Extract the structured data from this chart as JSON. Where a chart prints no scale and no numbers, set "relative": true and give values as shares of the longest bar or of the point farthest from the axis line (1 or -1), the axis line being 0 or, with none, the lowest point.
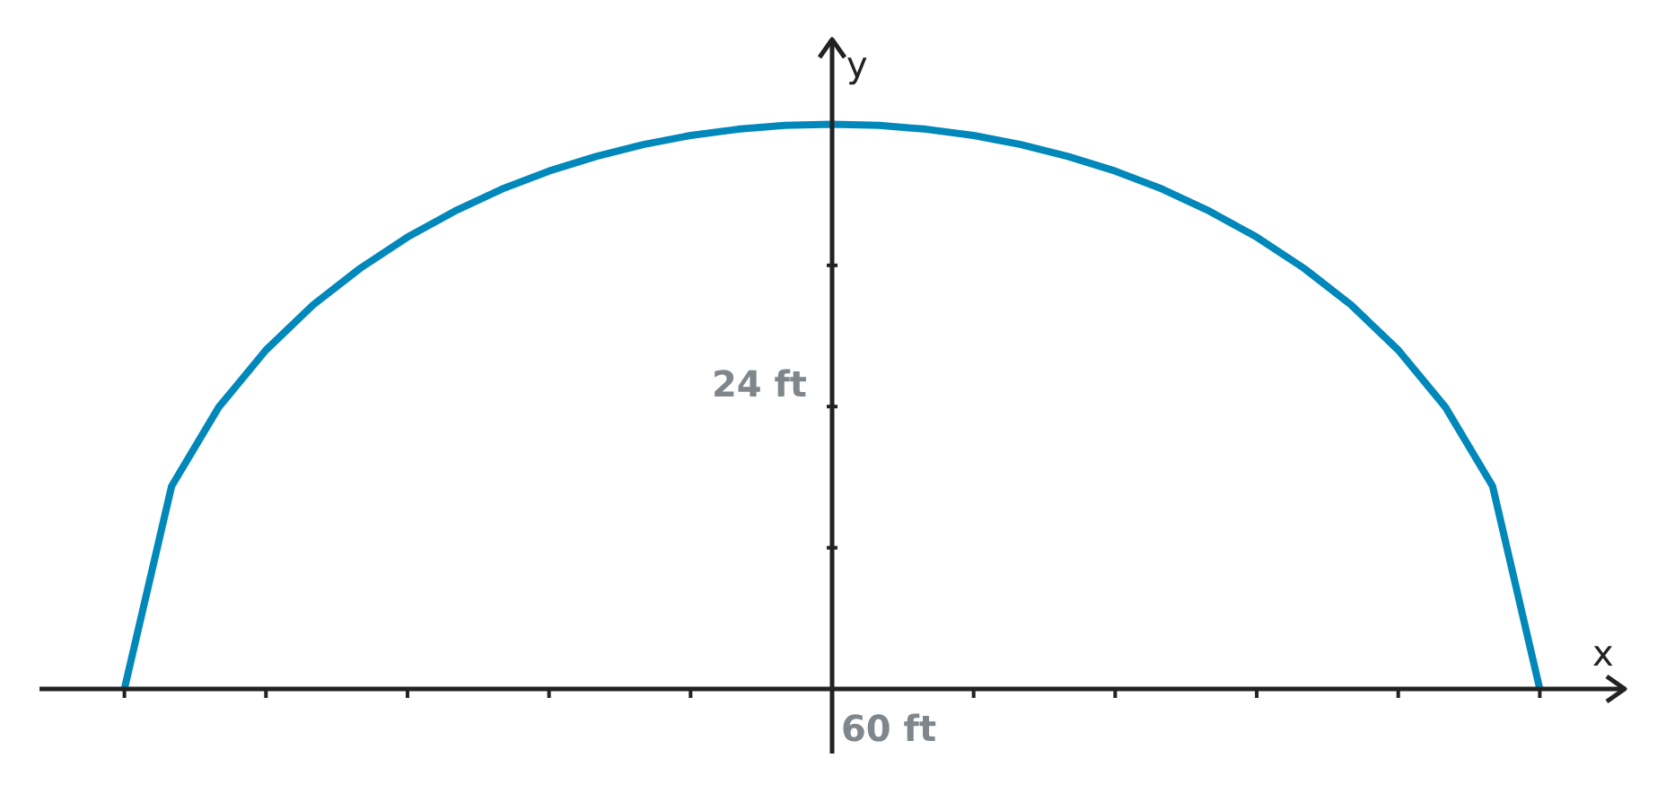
{
  "chart_data": {
    "type": "line",
    "relative": true,
    "xlabel": "x",
    "ylabel": "y",
    "annotations": [
      "24 ft",
      "60 ft"
    ],
    "categories": [
      null,
      null,
      null,
      null,
      null,
      null,
      null,
      null,
      null,
      null,
      null,
      null,
      null,
      null,
      null,
      null,
      null,
      null,
      null,
      null,
      null,
      null,
      null,
      null,
      null,
      null,
      null,
      null,
      null,
      null,
      null
    ],
    "values": [
      0,
      0.359,
      0.499,
      0.6,
      0.68,
      0.745,
      0.8,
      0.846,
      0.885,
      0.917,
      0.943,
      0.964,
      0.98,
      0.991,
      0.998,
      1,
      0.998,
      0.991,
      0.98,
      0.964,
      0.943,
      0.917,
      0.885,
      0.846,
      0.8,
      0.745,
      0.68,
      0.6,
      0.499,
      0.359,
      0
    ],
    "color": "#0088bb",
    "marker": "none",
    "line_style": "solid"
  }
}
